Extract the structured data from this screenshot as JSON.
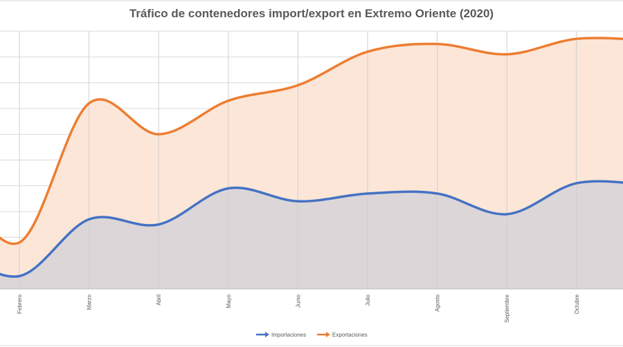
{
  "chart_data": {
    "type": "area",
    "title": "Tráfico de contenedores import/export en Extremo Oriente (2020)",
    "xlabel": "",
    "ylabel": "",
    "categories": [
      "Febrero",
      "Marzo",
      "Abril",
      "Mayo",
      "Junio",
      "Julio",
      "Agosto",
      "Septiembre",
      "Octubre"
    ],
    "ylim": [
      0,
      10
    ],
    "grid": true,
    "smooth": true,
    "legend_position": "bottom",
    "series": [
      {
        "name": "Importaciones",
        "color": "#4472c4",
        "fill": "#dcd6d9",
        "values": [
          0.5,
          2.7,
          2.5,
          3.9,
          3.4,
          3.7,
          3.7,
          2.9,
          4.1
        ]
      },
      {
        "name": "Exportaciones",
        "color": "#ed7d31",
        "fill": "#fce6d8",
        "values": [
          1.8,
          7.2,
          6.0,
          7.3,
          7.9,
          9.2,
          9.5,
          9.1,
          9.7
        ]
      }
    ]
  }
}
